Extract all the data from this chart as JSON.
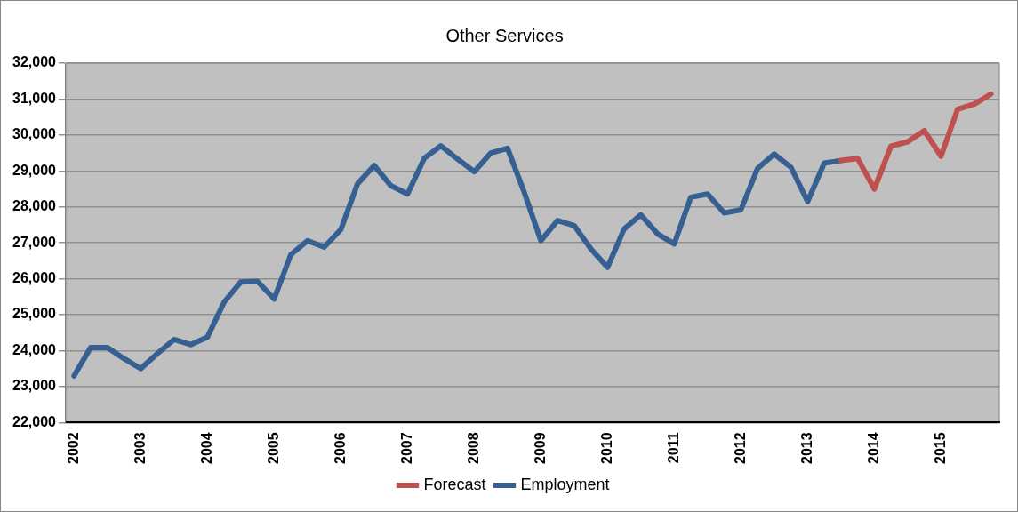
{
  "chart_data": {
    "type": "line",
    "title": "Other Services",
    "categories": [
      "2002",
      null,
      null,
      null,
      "2003",
      null,
      null,
      null,
      "2004",
      null,
      null,
      null,
      "2005",
      null,
      null,
      null,
      "2006",
      null,
      null,
      null,
      "2007",
      null,
      null,
      null,
      "2008",
      null,
      null,
      null,
      "2009",
      null,
      null,
      null,
      "2010",
      null,
      null,
      null,
      "2011",
      null,
      null,
      null,
      "2012",
      null,
      null,
      null,
      "2013",
      null,
      null,
      null,
      "2014",
      null,
      null,
      null,
      "2015",
      null,
      null,
      null
    ],
    "series": [
      {
        "name": "Forecast",
        "color": "#c0504d",
        "values": [
          null,
          null,
          null,
          null,
          null,
          null,
          null,
          null,
          null,
          null,
          null,
          null,
          null,
          null,
          null,
          null,
          null,
          null,
          null,
          null,
          null,
          null,
          null,
          null,
          null,
          null,
          null,
          null,
          null,
          null,
          null,
          null,
          null,
          null,
          null,
          null,
          null,
          null,
          null,
          null,
          null,
          null,
          null,
          null,
          null,
          null,
          29290,
          29350,
          28500,
          29690,
          29810,
          30120,
          29410,
          30720,
          30860,
          31140
        ]
      },
      {
        "name": "Employment",
        "color": "#376092",
        "values": [
          23300,
          24090,
          24090,
          23780,
          23500,
          23920,
          24310,
          24170,
          24380,
          25350,
          25910,
          25930,
          25440,
          26670,
          27060,
          26880,
          27370,
          28640,
          29150,
          28590,
          28360,
          29350,
          29700,
          29330,
          28980,
          29500,
          29630,
          28410,
          27060,
          27620,
          27480,
          26830,
          26320,
          27390,
          27780,
          27250,
          26970,
          28270,
          28360,
          27830,
          27920,
          29070,
          29470,
          29100,
          28150,
          29220,
          29290,
          null,
          null,
          null,
          null,
          null,
          null,
          null,
          null,
          null
        ]
      }
    ],
    "ylim": [
      22000,
      32000
    ],
    "yticks": [
      {
        "value": 22000,
        "label": "22,000"
      },
      {
        "value": 23000,
        "label": "23,000"
      },
      {
        "value": 24000,
        "label": "24,000"
      },
      {
        "value": 25000,
        "label": "25,000"
      },
      {
        "value": 26000,
        "label": "26,000"
      },
      {
        "value": 27000,
        "label": "27,000"
      },
      {
        "value": 28000,
        "label": "28,000"
      },
      {
        "value": 29000,
        "label": "29,000"
      },
      {
        "value": 30000,
        "label": "30,000"
      },
      {
        "value": 31000,
        "label": "31,000"
      },
      {
        "value": 32000,
        "label": "32,000"
      }
    ],
    "grid": "y",
    "legend": "bottom",
    "marker": "none",
    "line_style": "solid"
  }
}
